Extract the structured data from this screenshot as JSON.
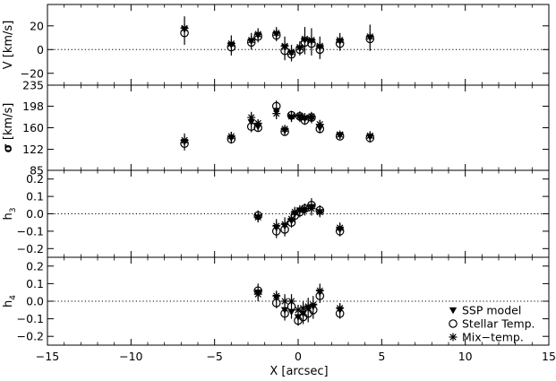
{
  "chart_data": {
    "type": "scatter",
    "xlabel": "X [arcsec]",
    "xlim": [
      -15,
      15
    ],
    "x_ticks": [
      -15,
      -10,
      -5,
      0,
      5,
      10,
      15
    ],
    "x_tick_labels": [
      "−15",
      "−10",
      "−5",
      "0",
      "5",
      "10",
      "15"
    ],
    "legend": {
      "placement": "lower-right of bottom panel",
      "entries": [
        {
          "label": "SSP model",
          "marker": "filled-triangle-down"
        },
        {
          "label": "Stellar Temp.",
          "marker": "open-circle"
        },
        {
          "label": "Mix−temp.",
          "marker": "asterisk"
        }
      ]
    },
    "panels": [
      {
        "id": "v",
        "ylabel_main": "V",
        "ylabel_sub": "",
        "ylabel_unit": " [km/s]",
        "ylim": [
          -30,
          38
        ],
        "yticks": [
          -20,
          0,
          20
        ],
        "ytick_labels": [
          "−20",
          "0",
          "20"
        ],
        "reference_line": 0,
        "points": [
          {
            "x": -6.8,
            "ssp": 17,
            "stellar": 14,
            "mix": 18,
            "err": 10
          },
          {
            "x": -4.0,
            "ssp": 4,
            "stellar": 2,
            "mix": 5,
            "err": 7
          },
          {
            "x": -2.8,
            "ssp": 7,
            "stellar": 6,
            "mix": 8,
            "err": 6
          },
          {
            "x": -2.4,
            "ssp": 12,
            "stellar": 11,
            "mix": 13,
            "err": 5
          },
          {
            "x": -1.3,
            "ssp": 13,
            "stellar": 12,
            "mix": 14,
            "err": 5
          },
          {
            "x": -0.8,
            "ssp": 2,
            "stellar": -1,
            "mix": 3,
            "err": 8
          },
          {
            "x": -0.4,
            "ssp": -3,
            "stellar": -4,
            "mix": -2,
            "err": 6
          },
          {
            "x": 0.1,
            "ssp": 1,
            "stellar": 0,
            "mix": 2,
            "err": 5
          },
          {
            "x": 0.4,
            "ssp": 8,
            "stellar": 6,
            "mix": 9,
            "err": 10
          },
          {
            "x": 0.8,
            "ssp": 7,
            "stellar": 5,
            "mix": 8,
            "err": 10
          },
          {
            "x": 1.3,
            "ssp": 2,
            "stellar": 0,
            "mix": 3,
            "err": 8
          },
          {
            "x": 2.5,
            "ssp": 7,
            "stellar": 5,
            "mix": 8,
            "err": 6
          },
          {
            "x": 4.3,
            "ssp": 10,
            "stellar": 9,
            "mix": 11,
            "err": 10
          }
        ]
      },
      {
        "id": "sigma",
        "ylabel_main": "σ",
        "ylabel_sub": "",
        "ylabel_unit": " [km/s]",
        "ylim": [
          85,
          235
        ],
        "yticks": [
          85,
          122,
          160,
          198,
          235
        ],
        "ytick_labels": [
          "85",
          "122",
          "160",
          "198",
          "235"
        ],
        "reference_line": null,
        "points": [
          {
            "x": -6.8,
            "ssp": 135,
            "stellar": 132,
            "mix": 138,
            "err": 12
          },
          {
            "x": -4.0,
            "ssp": 142,
            "stellar": 140,
            "mix": 145,
            "err": 8
          },
          {
            "x": -2.8,
            "ssp": 170,
            "stellar": 162,
            "mix": 178,
            "err": 10
          },
          {
            "x": -2.4,
            "ssp": 162,
            "stellar": 160,
            "mix": 168,
            "err": 6
          },
          {
            "x": -1.3,
            "ssp": 190,
            "stellar": 198,
            "mix": 185,
            "err": 10
          },
          {
            "x": -0.8,
            "ssp": 155,
            "stellar": 153,
            "mix": 158,
            "err": 6
          },
          {
            "x": -0.4,
            "ssp": 178,
            "stellar": 182,
            "mix": 180,
            "err": 8
          },
          {
            "x": 0.1,
            "ssp": 178,
            "stellar": 180,
            "mix": 181,
            "err": 8
          },
          {
            "x": 0.4,
            "ssp": 176,
            "stellar": 173,
            "mix": 178,
            "err": 8
          },
          {
            "x": 0.8,
            "ssp": 176,
            "stellar": 178,
            "mix": 180,
            "err": 8
          },
          {
            "x": 1.3,
            "ssp": 160,
            "stellar": 158,
            "mix": 166,
            "err": 8
          },
          {
            "x": 2.5,
            "ssp": 147,
            "stellar": 145,
            "mix": 148,
            "err": 5
          },
          {
            "x": 4.3,
            "ssp": 144,
            "stellar": 142,
            "mix": 146,
            "err": 8
          }
        ]
      },
      {
        "id": "h3",
        "ylabel_main": "h",
        "ylabel_sub": "3",
        "ylabel_unit": "",
        "ylim": [
          -0.25,
          0.25
        ],
        "yticks": [
          -0.2,
          -0.1,
          0.0,
          0.1,
          0.2
        ],
        "ytick_labels": [
          "−0.2",
          "−0.1",
          "0.0",
          "0.1",
          "0.2"
        ],
        "reference_line": 0,
        "points": [
          {
            "x": -2.4,
            "ssp": -0.02,
            "stellar": -0.01,
            "mix": -0.02,
            "err": 0.03
          },
          {
            "x": -1.3,
            "ssp": -0.08,
            "stellar": -0.1,
            "mix": -0.07,
            "err": 0.04
          },
          {
            "x": -0.8,
            "ssp": -0.07,
            "stellar": -0.09,
            "mix": -0.06,
            "err": 0.04
          },
          {
            "x": -0.4,
            "ssp": -0.04,
            "stellar": -0.05,
            "mix": -0.03,
            "err": 0.03
          },
          {
            "x": -0.2,
            "ssp": 0.0,
            "stellar": -0.01,
            "mix": 0.01,
            "err": 0.03
          },
          {
            "x": 0.1,
            "ssp": 0.02,
            "stellar": 0.01,
            "mix": 0.02,
            "err": 0.03
          },
          {
            "x": 0.4,
            "ssp": 0.02,
            "stellar": 0.03,
            "mix": 0.03,
            "err": 0.03
          },
          {
            "x": 0.8,
            "ssp": 0.04,
            "stellar": 0.05,
            "mix": 0.03,
            "err": 0.04
          },
          {
            "x": 1.3,
            "ssp": 0.01,
            "stellar": 0.02,
            "mix": 0.01,
            "err": 0.03
          },
          {
            "x": 2.5,
            "ssp": -0.09,
            "stellar": -0.1,
            "mix": -0.08,
            "err": 0.03
          }
        ]
      },
      {
        "id": "h4",
        "ylabel_main": "h",
        "ylabel_sub": "4",
        "ylabel_unit": "",
        "ylim": [
          -0.25,
          0.25
        ],
        "yticks": [
          -0.2,
          -0.1,
          0.0,
          0.1,
          0.2
        ],
        "ytick_labels": [
          "−0.2",
          "−0.1",
          "0.0",
          "0.1",
          "0.2"
        ],
        "reference_line": 0,
        "points": [
          {
            "x": -2.4,
            "ssp": 0.05,
            "stellar": 0.06,
            "mix": 0.04,
            "err": 0.04
          },
          {
            "x": -1.3,
            "ssp": 0.02,
            "stellar": -0.01,
            "mix": 0.03,
            "err": 0.03
          },
          {
            "x": -0.8,
            "ssp": -0.05,
            "stellar": -0.07,
            "mix": 0.0,
            "err": 0.04
          },
          {
            "x": -0.4,
            "ssp": -0.06,
            "stellar": -0.03,
            "mix": 0.0,
            "err": 0.04
          },
          {
            "x": 0.0,
            "ssp": -0.09,
            "stellar": -0.11,
            "mix": -0.05,
            "err": 0.03
          },
          {
            "x": 0.3,
            "ssp": -0.07,
            "stellar": -0.09,
            "mix": -0.04,
            "err": 0.04
          },
          {
            "x": 0.6,
            "ssp": -0.04,
            "stellar": -0.07,
            "mix": -0.03,
            "err": 0.05
          },
          {
            "x": 0.9,
            "ssp": -0.03,
            "stellar": -0.05,
            "mix": -0.02,
            "err": 0.05
          },
          {
            "x": 1.3,
            "ssp": 0.05,
            "stellar": 0.03,
            "mix": 0.06,
            "err": 0.04
          },
          {
            "x": 2.5,
            "ssp": -0.05,
            "stellar": -0.07,
            "mix": -0.04,
            "err": 0.03
          }
        ]
      }
    ]
  }
}
